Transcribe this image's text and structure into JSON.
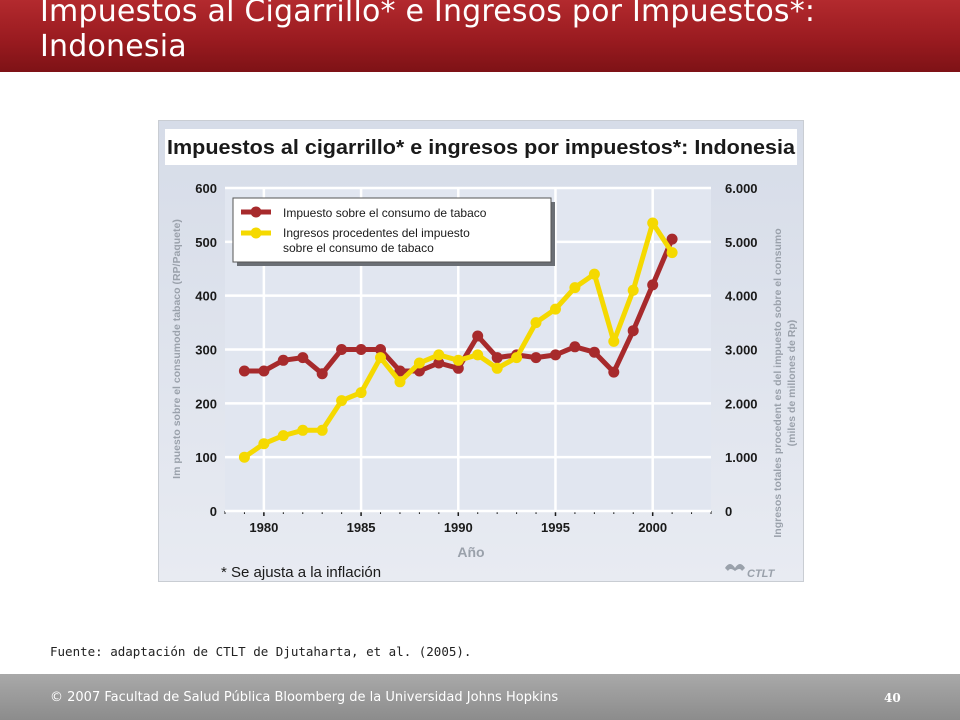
{
  "slide": {
    "title": "Impuestos al Cigarrillo* e Ingresos por Impuestos*: Indonesia",
    "source": "Fuente: adaptación de CTLT de Djutaharta, et al. (2005).",
    "footer": "© 2007 Facultad de Salud Pública Bloomberg de la Universidad Johns Hopkins",
    "page_number": "40"
  },
  "colors": {
    "title_bar": "#9a1b20",
    "footer_bar": "#999999",
    "plot_background": "#e0e5ef",
    "grid": "#ffffff",
    "tax_series": "#a72a2c",
    "revenue_series": "#f5d900",
    "axis_text": "#1a1a1a",
    "axis_label_text": "#9aa1ab"
  },
  "chart_data": {
    "type": "line",
    "title": "Impuestos al cigarrillo* e ingresos por impuestos*: Indonesia",
    "xlabel": "Año",
    "ylabel_left": "Im puesto sobre el consumode tabaco (RP/Paquete)",
    "ylabel_right": "Ingresos totales procedent es del impuesto sobre el consumo (miles de millones de Rp)",
    "ylabel_right_line1": "Ingresos totales procedent es del impuesto sobre el consumo",
    "ylabel_right_line2": "(miles de millones de Rp)",
    "footnote": "* Se ajusta a la inflación",
    "watermark": "CTLT",
    "xlim": [
      1978,
      2003
    ],
    "ylim_left": [
      0,
      600
    ],
    "ylim_right": [
      0,
      6000
    ],
    "x_ticks": [
      "1980",
      "1985",
      "1990",
      "1995",
      "2000"
    ],
    "y_ticks_left": [
      "0",
      "100",
      "200",
      "300",
      "400",
      "500",
      "600"
    ],
    "y_ticks_right": [
      "0",
      "1.000",
      "2.000",
      "3.000",
      "4.000",
      "5.000",
      "6.000"
    ],
    "grid": true,
    "legend_position": "top-left",
    "series": [
      {
        "name": "Impuesto sobre el consumo de tabaco",
        "axis": "left",
        "color": "#a72a2c",
        "x": [
          1979,
          1980,
          1981,
          1982,
          1983,
          1984,
          1985,
          1986,
          1987,
          1988,
          1989,
          1990,
          1991,
          1992,
          1993,
          1994,
          1995,
          1996,
          1997,
          1998,
          1999,
          2000,
          2001
        ],
        "values": [
          260,
          260,
          280,
          285,
          255,
          300,
          300,
          300,
          260,
          260,
          275,
          265,
          325,
          285,
          290,
          285,
          290,
          305,
          295,
          258,
          335,
          420,
          505
        ]
      },
      {
        "name": "Ingresos procedentes del impuesto sobre el consumo de tabaco",
        "name_line1": "Ingresos procedentes del impuesto",
        "name_line2": "sobre el consumo de tabaco",
        "axis": "right",
        "color": "#f5d900",
        "x": [
          1979,
          1980,
          1981,
          1982,
          1983,
          1984,
          1985,
          1986,
          1987,
          1988,
          1989,
          1990,
          1991,
          1992,
          1993,
          1994,
          1995,
          1996,
          1997,
          1998,
          1999,
          2000,
          2001
        ],
        "values": [
          1000,
          1250,
          1400,
          1500,
          1500,
          2050,
          2200,
          2850,
          2400,
          2750,
          2900,
          2800,
          2900,
          2650,
          2850,
          3500,
          3750,
          4150,
          4400,
          3150,
          4100,
          5350,
          4800
        ]
      }
    ]
  }
}
